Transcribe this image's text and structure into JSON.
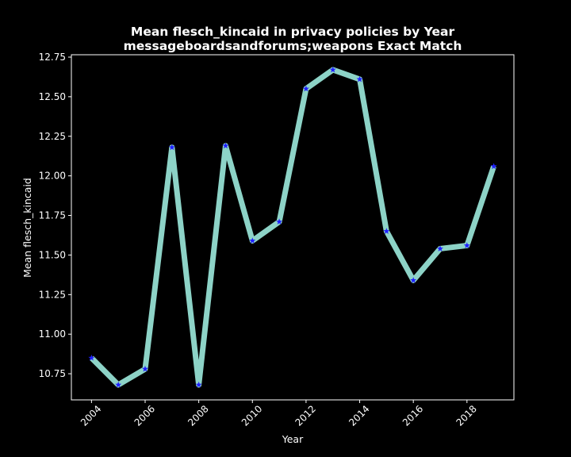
{
  "chart_data": {
    "type": "line",
    "title": "Mean flesch_kincaid in privacy policies by Year",
    "subtitle": "messageboardsandforums;weapons Exact Match",
    "xlabel": "Year",
    "ylabel": "Mean flesch_kincaid",
    "x": [
      2004,
      2005,
      2006,
      2007,
      2008,
      2009,
      2010,
      2011,
      2012,
      2013,
      2014,
      2015,
      2016,
      2017,
      2018,
      2019
    ],
    "series": [
      {
        "values": [
          10.85,
          10.68,
          10.78,
          12.18,
          10.68,
          12.19,
          11.59,
          11.71,
          12.55,
          12.67,
          12.61,
          11.65,
          11.34,
          11.54,
          11.56,
          12.06
        ]
      }
    ],
    "xlim": [
      2003.25,
      2019.75
    ],
    "ylim": [
      10.585,
      12.765
    ],
    "xticks": [
      2004,
      2006,
      2008,
      2010,
      2012,
      2014,
      2016,
      2018
    ],
    "yticks": [
      "10.75",
      "11.00",
      "11.25",
      "11.50",
      "11.75",
      "12.00",
      "12.25",
      "12.50",
      "12.75"
    ],
    "grid": false,
    "colors": {
      "background": "#000000",
      "line": "#8dd3c7",
      "marker": "#1f1fff",
      "axes": "#ffffff",
      "text": "#ffffff"
    }
  }
}
